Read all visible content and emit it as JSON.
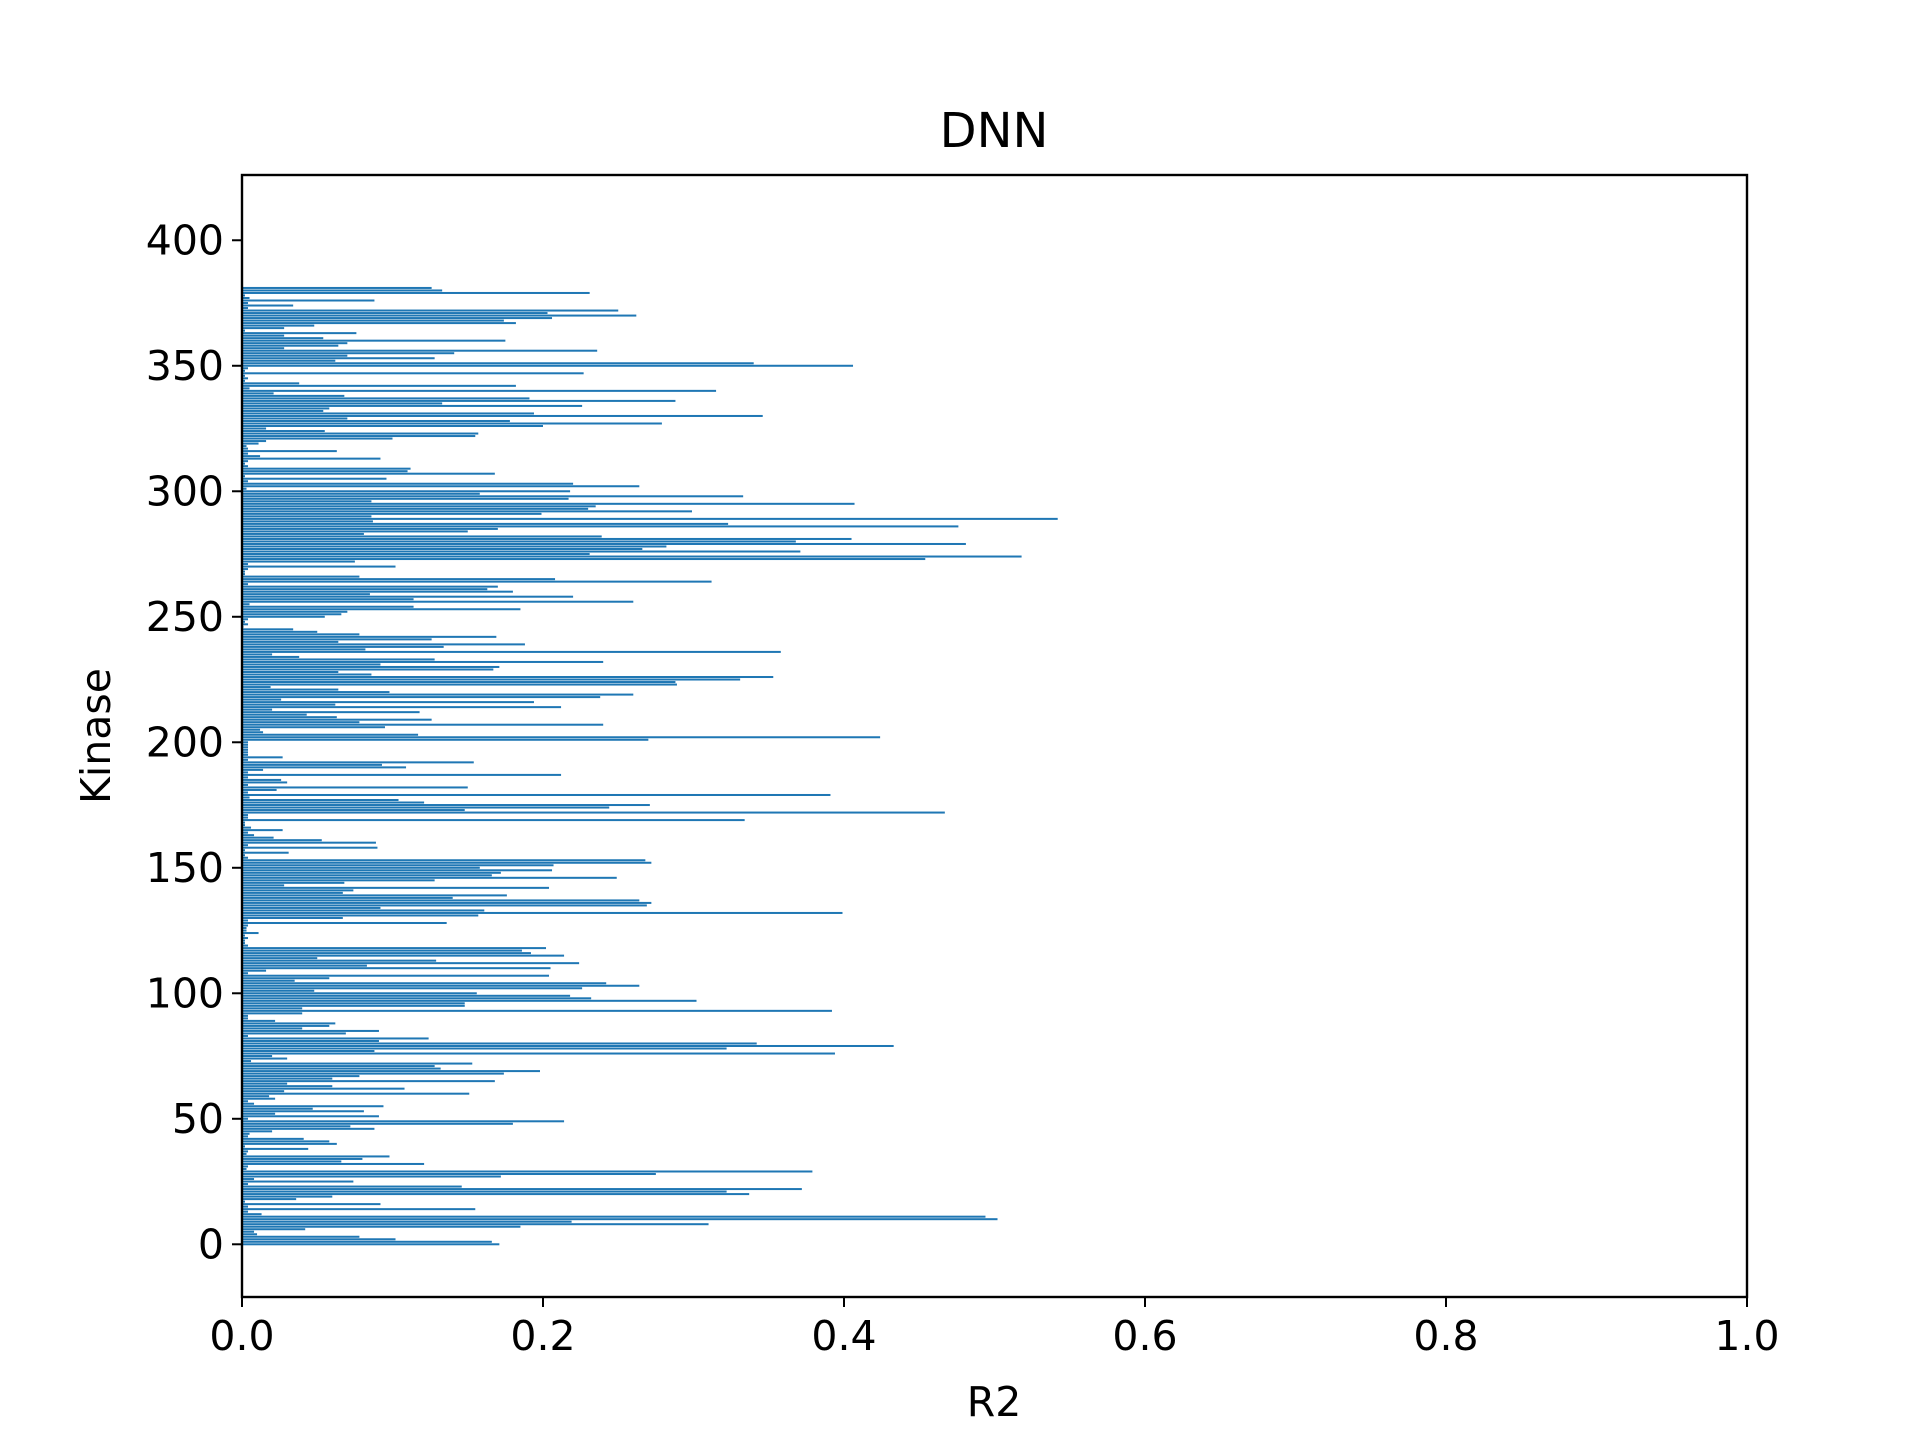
{
  "chart_data": {
    "type": "bar",
    "orientation": "horizontal",
    "title": "DNN",
    "xlabel": "R2",
    "ylabel": "Kinase",
    "xlim": [
      0,
      1
    ],
    "ylim": [
      -21,
      426
    ],
    "x_ticks": [
      "0.0",
      "0.2",
      "0.4",
      "0.6",
      "0.8",
      "1.0"
    ],
    "y_ticks": [
      "0",
      "50",
      "100",
      "150",
      "200",
      "250",
      "300",
      "350",
      "400"
    ],
    "grid": false,
    "bar_color": "#1f77b4",
    "series": [
      {
        "values": [
          0.171,
          0.166,
          0.102,
          0.078,
          0.01,
          0.008,
          0.042,
          0.185,
          0.31,
          0.219,
          0.502,
          0.494,
          0.013,
          0.004,
          0.155,
          0.004,
          0.092,
          0.002,
          0.036,
          0.06,
          0.337,
          0.322,
          0.372,
          0.146,
          0.004,
          0.074,
          0.008,
          0.172,
          0.275,
          0.379,
          0.003,
          0.004,
          0.121,
          0.066,
          0.08,
          0.098,
          0.003,
          0.004,
          0.044,
          0.002,
          0.063,
          0.058,
          0.041,
          0.004,
          0.005,
          0.02,
          0.088,
          0.072,
          0.18,
          0.214,
          0.004,
          0.091,
          0.022,
          0.081,
          0.047,
          0.094,
          0.008,
          0.004,
          0.022,
          0.018,
          0.151,
          0.028,
          0.108,
          0.06,
          0.03,
          0.168,
          0.06,
          0.078,
          0.174,
          0.198,
          0.132,
          0.128,
          0.153,
          0.006,
          0.03,
          0.02,
          0.394,
          0.088,
          0.322,
          0.433,
          0.342,
          0.091,
          0.124,
          0.004,
          0.069,
          0.091,
          0.04,
          0.058,
          0.062,
          0.022,
          0.004,
          0.004,
          0.04,
          0.392,
          0.04,
          0.148,
          0.148,
          0.302,
          0.232,
          0.218,
          0.156,
          0.048,
          0.226,
          0.264,
          0.242,
          0.035,
          0.058,
          0.204,
          0.004,
          0.016,
          0.205,
          0.083,
          0.224,
          0.129,
          0.05,
          0.214,
          0.192,
          0.186,
          0.202,
          0.004,
          0.002,
          0.002,
          0.004,
          0.002,
          0.011,
          0.003,
          0.003,
          0.004,
          0.136,
          0.004,
          0.067,
          0.157,
          0.399,
          0.161,
          0.092,
          0.269,
          0.272,
          0.264,
          0.14,
          0.176,
          0.067,
          0.074,
          0.204,
          0.028,
          0.068,
          0.128,
          0.249,
          0.166,
          0.172,
          0.206,
          0.158,
          0.207,
          0.272,
          0.268,
          0.004,
          0.002,
          0.031,
          0.002,
          0.09,
          0.004,
          0.089,
          0.053,
          0.021,
          0.008,
          0.004,
          0.027,
          0.006,
          0.002,
          0.002,
          0.334,
          0.004,
          0.004,
          0.467,
          0.148,
          0.244,
          0.271,
          0.121,
          0.104,
          0.005,
          0.391,
          0.004,
          0.023,
          0.15,
          0.004,
          0.03,
          0.026,
          0.004,
          0.212,
          0.004,
          0.014,
          0.109,
          0.093,
          0.154,
          0.004,
          0.027,
          0.004,
          0.004,
          0.004,
          0.004,
          0.004,
          0.004,
          0.27,
          0.424,
          0.117,
          0.014,
          0.012,
          0.095,
          0.24,
          0.078,
          0.126,
          0.063,
          0.043,
          0.118,
          0.02,
          0.212,
          0.062,
          0.194,
          0.026,
          0.238,
          0.26,
          0.098,
          0.064,
          0.019,
          0.289,
          0.288,
          0.331,
          0.353,
          0.086,
          0.064,
          0.167,
          0.171,
          0.092,
          0.24,
          0.128,
          0.038,
          0.02,
          0.358,
          0.082,
          0.134,
          0.188,
          0.064,
          0.126,
          0.169,
          0.078,
          0.05,
          0.034,
          0.001,
          0.004,
          0.002,
          0.004,
          0.055,
          0.066,
          0.07,
          0.185,
          0.114,
          0.005,
          0.26,
          0.114,
          0.22,
          0.085,
          0.18,
          0.163,
          0.17,
          0.004,
          0.312,
          0.208,
          0.078,
          0.002,
          0.002,
          0.004,
          0.102,
          0.004,
          0.075,
          0.454,
          0.518,
          0.231,
          0.371,
          0.266,
          0.282,
          0.481,
          0.368,
          0.405,
          0.239,
          0.081,
          0.15,
          0.17,
          0.476,
          0.323,
          0.087,
          0.542,
          0.086,
          0.199,
          0.299,
          0.23,
          0.235,
          0.407,
          0.086,
          0.217,
          0.333,
          0.158,
          0.218,
          0.003,
          0.264,
          0.22,
          0.004,
          0.096,
          0.002,
          0.168,
          0.11,
          0.112,
          0.004,
          0.002,
          0.004,
          0.092,
          0.012,
          0.004,
          0.063,
          0.004,
          0.003,
          0.011,
          0.016,
          0.1,
          0.155,
          0.157,
          0.055,
          0.016,
          0.2,
          0.279,
          0.178,
          0.07,
          0.346,
          0.194,
          0.054,
          0.058,
          0.226,
          0.133,
          0.288,
          0.191,
          0.068,
          0.021,
          0.315,
          0.005,
          0.182,
          0.038,
          0.002,
          0.004,
          0.002,
          0.227,
          0.002,
          0.004,
          0.406,
          0.34,
          0.062,
          0.128,
          0.07,
          0.141,
          0.236,
          0.028,
          0.064,
          0.07,
          0.175,
          0.054,
          0.028,
          0.076,
          0.002,
          0.028,
          0.048,
          0.182,
          0.174,
          0.206,
          0.262,
          0.203,
          0.25,
          0.004,
          0.034,
          0.004,
          0.088,
          0.005,
          0.002,
          0.231,
          0.133,
          0.126
        ]
      }
    ]
  }
}
